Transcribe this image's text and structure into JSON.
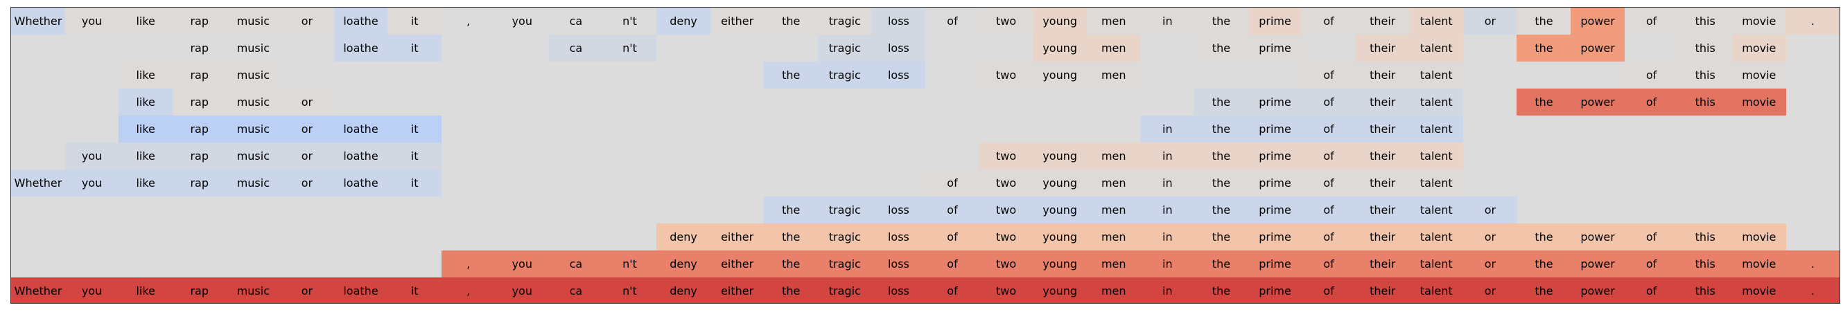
{
  "tokens": [
    "Whether",
    "you",
    "like",
    "rap",
    "music",
    "or",
    "loathe",
    "it",
    ",",
    "you",
    "ca",
    "n't",
    "deny",
    "either",
    "the",
    "tragic",
    "loss",
    "of",
    "two",
    "young",
    "men",
    "in",
    "the",
    "prime",
    "of",
    "their",
    "talent",
    "or",
    "the",
    "power",
    "of",
    "this",
    "movie",
    "."
  ],
  "colors": {
    "panel": "#dcdcdc",
    "b1": "#d2d8e2",
    "b2": "#cbd6ea",
    "b3": "#bcd0f5",
    "p0": "#dedad8",
    "p1": "#e8d4c8",
    "p2": "#f2c4aa",
    "o1": "#ef9b7c",
    "o2": "#e8806a",
    "o3": "#e37461",
    "r1": "#d9534a",
    "r2": "#d24540"
  },
  "rows": [
    {
      "shown": [
        0,
        1,
        2,
        3,
        4,
        5,
        6,
        7,
        8,
        9,
        10,
        11,
        12,
        13,
        14,
        15,
        16,
        17,
        18,
        19,
        20,
        21,
        22,
        23,
        24,
        25,
        26,
        27,
        28,
        29,
        30,
        31,
        32,
        33
      ],
      "shade": {
        "0": "b2",
        "1": "p0",
        "2": "p0",
        "3": "p0",
        "4": "p0",
        "5": "p0",
        "6": "b2",
        "7": "p0",
        "12": "b2",
        "13": "p0",
        "14": "p0",
        "15": "p0",
        "16": "b1",
        "18": "p0",
        "19": "p1",
        "20": "p0",
        "21": "p0",
        "22": "p0",
        "23": "p1",
        "24": "p0",
        "25": "p0",
        "26": "p1",
        "27": "b1",
        "28": "p0",
        "29": "o1",
        "30": "p0",
        "31": "p0",
        "32": "p0",
        "33": "p1"
      }
    },
    {
      "shown": [
        3,
        4,
        6,
        7,
        10,
        11,
        15,
        16,
        19,
        20,
        22,
        23,
        25,
        26,
        28,
        29,
        31,
        32
      ],
      "shade": {
        "6": "b2",
        "7": "b2",
        "10": "b1",
        "11": "b1",
        "15": "b1",
        "16": "b1",
        "19": "p1",
        "20": "p1",
        "22": "p0",
        "23": "p0",
        "25": "p1",
        "26": "p1",
        "28": "o1",
        "29": "o1",
        "31": "p0",
        "32": "p1"
      }
    },
    {
      "shown": [
        2,
        3,
        4,
        14,
        15,
        16,
        18,
        19,
        20,
        24,
        25,
        26,
        30,
        31,
        32
      ],
      "shade": {
        "2": "p0",
        "3": "p0",
        "4": "p0",
        "14": "b2",
        "15": "b2",
        "16": "b2",
        "18": "p0",
        "19": "p0",
        "20": "p0",
        "24": "p0",
        "25": "p0",
        "26": "p0",
        "30": "p0",
        "31": "p0",
        "32": "p0"
      }
    },
    {
      "shown": [
        2,
        3,
        4,
        5,
        22,
        23,
        24,
        25,
        26,
        28,
        29,
        30,
        31,
        32
      ],
      "shade": {
        "2": "b2",
        "3": "p0",
        "4": "p0",
        "5": "p0",
        "22": "b1",
        "23": "b1",
        "24": "b1",
        "25": "b1",
        "26": "b1",
        "28": "o3",
        "29": "o3",
        "30": "o3",
        "31": "o3",
        "32": "o3"
      }
    },
    {
      "shown": [
        2,
        3,
        4,
        5,
        6,
        7,
        21,
        22,
        23,
        24,
        25,
        26
      ],
      "shade": {
        "2": "b3",
        "3": "b3",
        "4": "b3",
        "5": "b3",
        "6": "b3",
        "7": "b3",
        "21": "b2",
        "22": "b2",
        "23": "b2",
        "24": "b2",
        "25": "b2",
        "26": "b2"
      }
    },
    {
      "shown": [
        1,
        2,
        3,
        4,
        5,
        6,
        7,
        18,
        19,
        20,
        21,
        22,
        23,
        24,
        25,
        26
      ],
      "shade": {
        "1": "b1",
        "2": "b1",
        "3": "b1",
        "4": "b1",
        "5": "b1",
        "6": "b1",
        "7": "b1",
        "18": "p1",
        "19": "p1",
        "20": "p1",
        "21": "p1",
        "22": "p1",
        "23": "p1",
        "24": "p1",
        "25": "p1",
        "26": "p1"
      }
    },
    {
      "shown": [
        0,
        1,
        2,
        3,
        4,
        5,
        6,
        7,
        17,
        18,
        19,
        20,
        21,
        22,
        23,
        24,
        25,
        26
      ],
      "shade": {
        "0": "b2",
        "1": "b2",
        "2": "b2",
        "3": "b2",
        "4": "b2",
        "5": "b2",
        "6": "b2",
        "7": "b2",
        "17": "p0",
        "18": "p0",
        "19": "p0",
        "20": "p0",
        "21": "p0",
        "22": "p0",
        "23": "p0",
        "24": "p0",
        "25": "p0",
        "26": "p0"
      }
    },
    {
      "shown": [
        14,
        15,
        16,
        17,
        18,
        19,
        20,
        21,
        22,
        23,
        24,
        25,
        26,
        27
      ],
      "shade": {
        "14": "b2",
        "15": "b2",
        "16": "b2",
        "17": "b2",
        "18": "b2",
        "19": "b2",
        "20": "b2",
        "21": "b2",
        "22": "b2",
        "23": "b2",
        "24": "b2",
        "25": "b2",
        "26": "b2",
        "27": "b2"
      }
    },
    {
      "shown": [
        12,
        13,
        14,
        15,
        16,
        17,
        18,
        19,
        20,
        21,
        22,
        23,
        24,
        25,
        26,
        27,
        28,
        29,
        30,
        31,
        32
      ],
      "shade": {
        "12": "p2",
        "13": "p2",
        "14": "p2",
        "15": "p2",
        "16": "p2",
        "17": "p2",
        "18": "p2",
        "19": "p2",
        "20": "p2",
        "21": "p2",
        "22": "p2",
        "23": "p2",
        "24": "p2",
        "25": "p2",
        "26": "p2",
        "27": "p2",
        "28": "p2",
        "29": "p2",
        "30": "p2",
        "31": "p2",
        "32": "p2"
      }
    },
    {
      "shown": [
        8,
        9,
        10,
        11,
        12,
        13,
        14,
        15,
        16,
        17,
        18,
        19,
        20,
        21,
        22,
        23,
        24,
        25,
        26,
        27,
        28,
        29,
        30,
        31,
        32,
        33
      ],
      "shade": {
        "8": "o2",
        "9": "o2",
        "10": "o2",
        "11": "o2",
        "12": "o2",
        "13": "o2",
        "14": "o2",
        "15": "o2",
        "16": "o2",
        "17": "o2",
        "18": "o2",
        "19": "o2",
        "20": "o2",
        "21": "o2",
        "22": "o2",
        "23": "o2",
        "24": "o2",
        "25": "o2",
        "26": "o2",
        "27": "o2",
        "28": "o2",
        "29": "o2",
        "30": "o2",
        "31": "o2",
        "32": "o2",
        "33": "o2"
      }
    },
    {
      "shown": [
        0,
        1,
        2,
        3,
        4,
        5,
        6,
        7,
        8,
        9,
        10,
        11,
        12,
        13,
        14,
        15,
        16,
        17,
        18,
        19,
        20,
        21,
        22,
        23,
        24,
        25,
        26,
        27,
        28,
        29,
        30,
        31,
        32,
        33
      ],
      "shade": {
        "0": "r2",
        "1": "r2",
        "2": "r2",
        "3": "r2",
        "4": "r2",
        "5": "r2",
        "6": "r2",
        "7": "r2",
        "8": "r2",
        "9": "r2",
        "10": "r2",
        "11": "r2",
        "12": "r2",
        "13": "r2",
        "14": "r2",
        "15": "r2",
        "16": "r2",
        "17": "r2",
        "18": "r2",
        "19": "r2",
        "20": "r2",
        "21": "r2",
        "22": "r2",
        "23": "r2",
        "24": "r2",
        "25": "r2",
        "26": "r2",
        "27": "r2",
        "28": "r2",
        "29": "r2",
        "30": "r2",
        "31": "r2",
        "32": "r2",
        "33": "r2"
      }
    }
  ]
}
